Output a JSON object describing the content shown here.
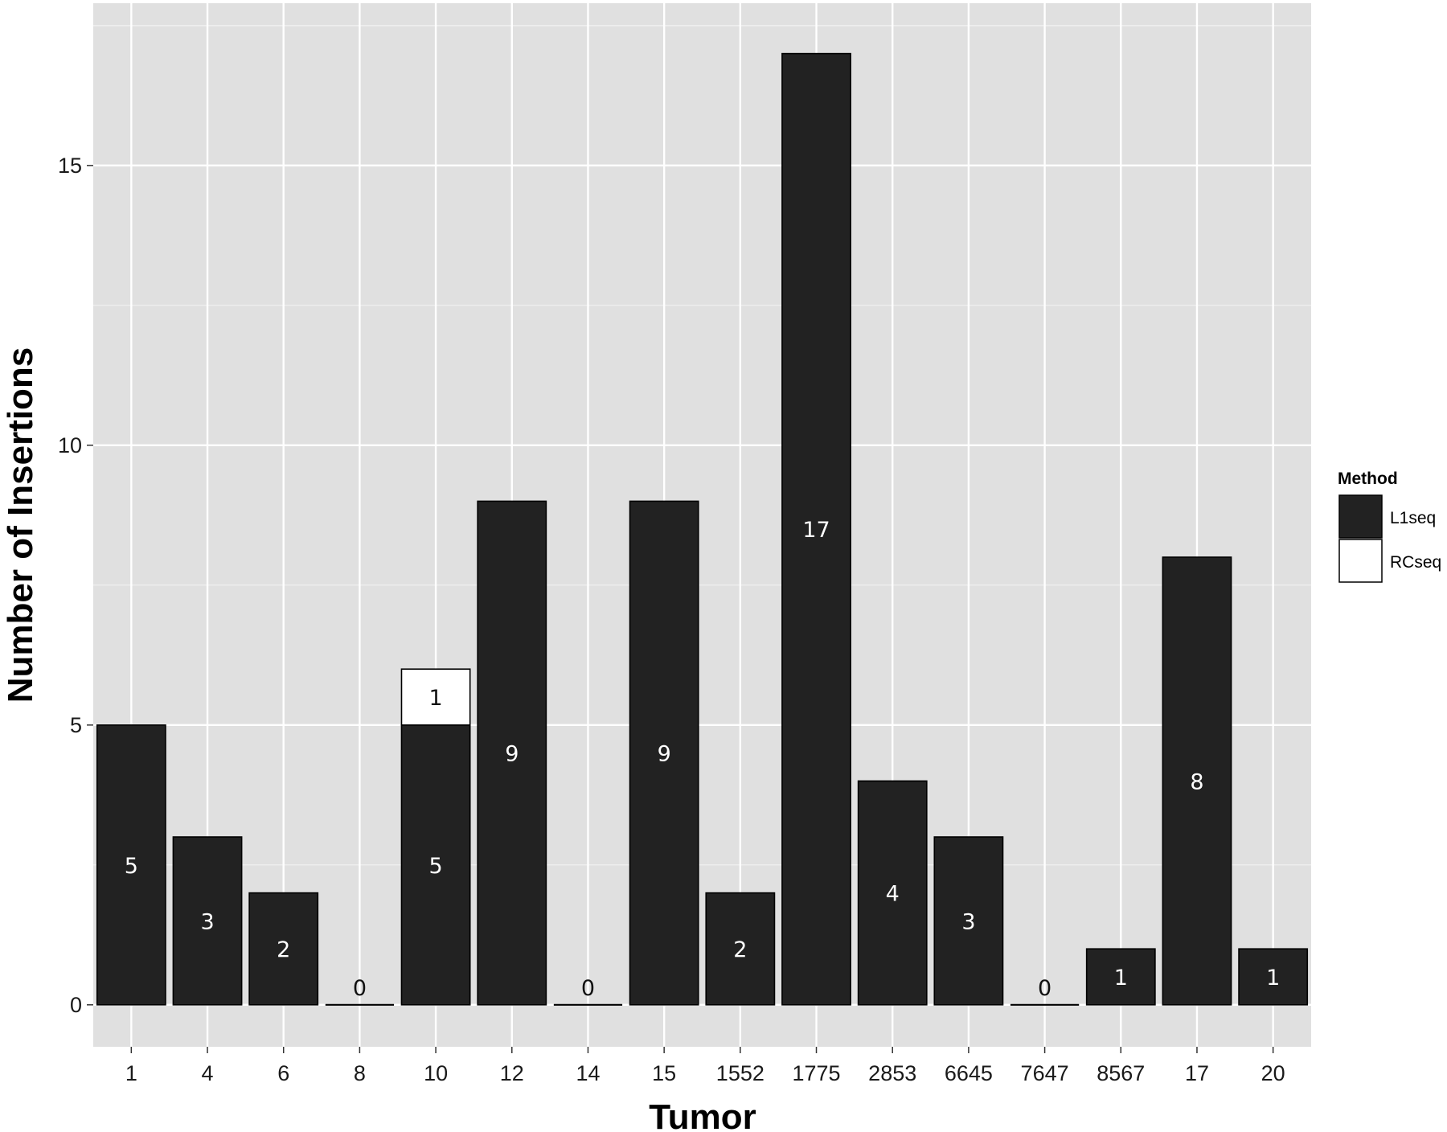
{
  "chart_data": {
    "type": "bar",
    "stacked": true,
    "categories": [
      "1",
      "4",
      "6",
      "8",
      "10",
      "12",
      "14",
      "15",
      "1552",
      "1775",
      "2853",
      "6645",
      "7647",
      "8567",
      "17",
      "20"
    ],
    "series": [
      {
        "name": "L1seq",
        "values": [
          5,
          3,
          2,
          0,
          5,
          9,
          0,
          9,
          2,
          17,
          4,
          3,
          0,
          1,
          8,
          1
        ],
        "color": "#222222"
      },
      {
        "name": "RCseq",
        "values": [
          0,
          0,
          0,
          0,
          1,
          0,
          0,
          0,
          0,
          0,
          0,
          0,
          0,
          0,
          0,
          0
        ],
        "color": "#ffffff"
      }
    ],
    "bar_labels": [
      {
        "category": "1",
        "series": "L1seq",
        "text": "5"
      },
      {
        "category": "4",
        "series": "L1seq",
        "text": "3"
      },
      {
        "category": "6",
        "series": "L1seq",
        "text": "2"
      },
      {
        "category": "8",
        "series": "L1seq",
        "text": "0"
      },
      {
        "category": "10",
        "series": "L1seq",
        "text": "5"
      },
      {
        "category": "10",
        "series": "RCseq",
        "text": "1"
      },
      {
        "category": "12",
        "series": "L1seq",
        "text": "9"
      },
      {
        "category": "14",
        "series": "L1seq",
        "text": "0"
      },
      {
        "category": "15",
        "series": "L1seq",
        "text": "9"
      },
      {
        "category": "1552",
        "series": "L1seq",
        "text": "2"
      },
      {
        "category": "1775",
        "series": "L1seq",
        "text": "17"
      },
      {
        "category": "2853",
        "series": "L1seq",
        "text": "4"
      },
      {
        "category": "6645",
        "series": "L1seq",
        "text": "3"
      },
      {
        "category": "7647",
        "series": "L1seq",
        "text": "0"
      },
      {
        "category": "8567",
        "series": "L1seq",
        "text": "1"
      },
      {
        "category": "17",
        "series": "L1seq",
        "text": "8"
      },
      {
        "category": "20",
        "series": "L1seq",
        "text": "1"
      }
    ],
    "xlabel": "Tumor",
    "ylabel": "Number of Insertions",
    "ylim": [
      -0.75,
      17.9
    ],
    "yticks": [
      0,
      5,
      10,
      15
    ],
    "grid": true,
    "legend": {
      "title": "Method",
      "position": "right",
      "entries": [
        "L1seq",
        "RCseq"
      ]
    },
    "colors": {
      "panel": "#e0e0e0",
      "grid": "#ffffff",
      "bar_dark": "#222222",
      "bar_light": "#ffffff",
      "outline": "#000000"
    }
  }
}
